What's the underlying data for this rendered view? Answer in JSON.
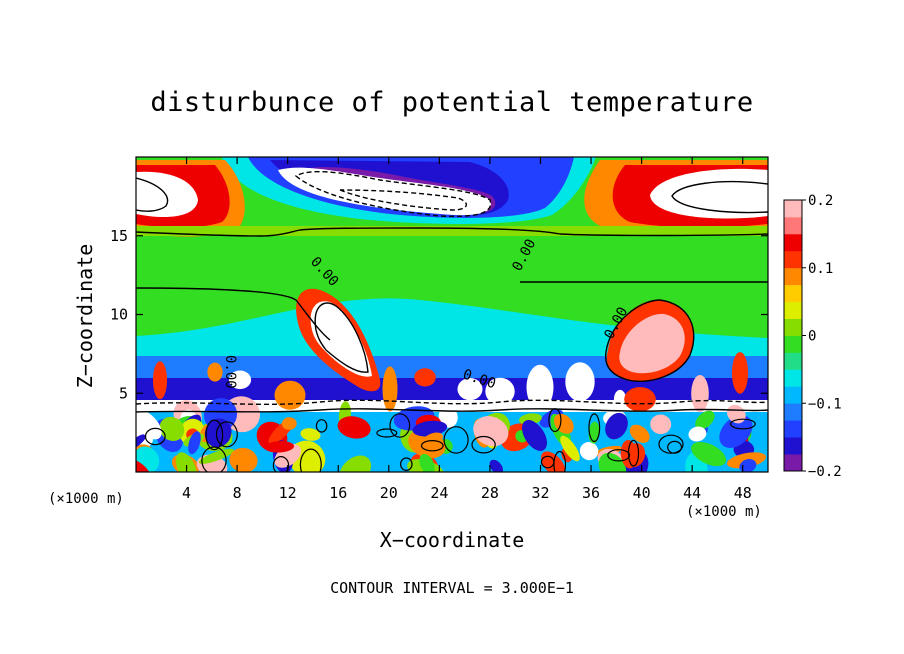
{
  "chart_data": {
    "type": "heatmap",
    "title": "disturbunce of potential temperature",
    "xlabel": "X−coordinate",
    "ylabel": "Z−coordinate",
    "x_unit": "(×1000 m)",
    "y_unit": "(×1000 m)",
    "x_range": [
      0,
      50
    ],
    "y_range": [
      0,
      20
    ],
    "x_ticks": [
      4,
      8,
      12,
      16,
      20,
      24,
      28,
      32,
      36,
      40,
      44,
      48
    ],
    "y_ticks": [
      5,
      10,
      15
    ],
    "colorbar": {
      "range": [
        -0.2,
        0.2
      ],
      "ticks": [
        {
          "value": 0.2,
          "label": "0.2"
        },
        {
          "value": 0.1,
          "label": "0.1"
        },
        {
          "value": 0,
          "label": "0"
        },
        {
          "value": -0.1,
          "label": "−0.1"
        },
        {
          "value": -0.2,
          "label": "−0.2"
        }
      ],
      "colors": [
        "#7a1aa8",
        "#2010d0",
        "#2240ff",
        "#1e7dff",
        "#00b8ff",
        "#00e6e6",
        "#22dd88",
        "#33dd22",
        "#88dd00",
        "#ddee00",
        "#ffcc00",
        "#ff8800",
        "#ff3300",
        "#ee0000",
        "#ff7777",
        "#ffbbbb"
      ]
    },
    "contour_labels": [
      "0.00",
      "0.00",
      "0.00",
      "0.00",
      "0.00"
    ],
    "contour_interval_text": "CONTOUR INTERVAL = 3.000E−1"
  }
}
